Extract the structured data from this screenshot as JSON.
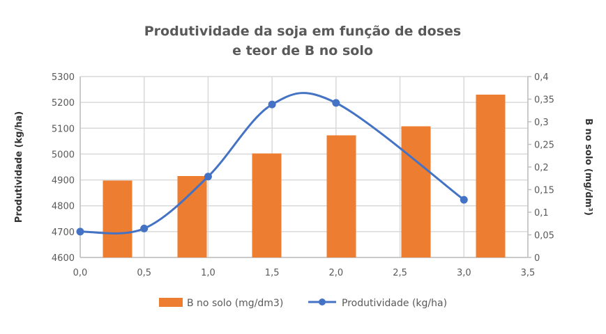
{
  "chart_data": {
    "type": "bar+line",
    "title_lines": [
      "Produtividade da soja em função de doses",
      "e teor de B no solo"
    ],
    "xlabel": "",
    "ylabel_left": "Produtividade (kg/ha)",
    "ylabel_right": "B no solo (mg/dm³)",
    "x_ticks": [
      "0,0",
      "0,5",
      "1,0",
      "1,5",
      "2,0",
      "2,5",
      "3,0",
      "3,5"
    ],
    "xlim": [
      0,
      3.5
    ],
    "y_left_ticks": [
      "4600",
      "4700",
      "4800",
      "4900",
      "5000",
      "5100",
      "5200",
      "5300"
    ],
    "ylim_left": [
      4600,
      5300
    ],
    "y_right_ticks": [
      "0",
      "0,05",
      "0,1",
      "0,15",
      "0,2",
      "0,25",
      "0,3",
      "0,35",
      "0,4"
    ],
    "ylim_right": [
      0,
      0.4
    ],
    "grid": true,
    "legend_position": "bottom",
    "series": [
      {
        "name": "B no solo (mg/dm3)",
        "type": "bar",
        "axis": "right",
        "color": "#ED7D31",
        "values": [
          0.17,
          0.18,
          0.23,
          0.27,
          0.29,
          0.36
        ]
      },
      {
        "name": "Produtividade (kg/ha)",
        "type": "line",
        "axis": "left",
        "color": "#4472C4",
        "smooth": true,
        "x": [
          0,
          0.5,
          1.0,
          1.5,
          2.0,
          3.0
        ],
        "values": [
          4700,
          4712,
          4913,
          5192,
          5198,
          4823
        ]
      }
    ]
  }
}
